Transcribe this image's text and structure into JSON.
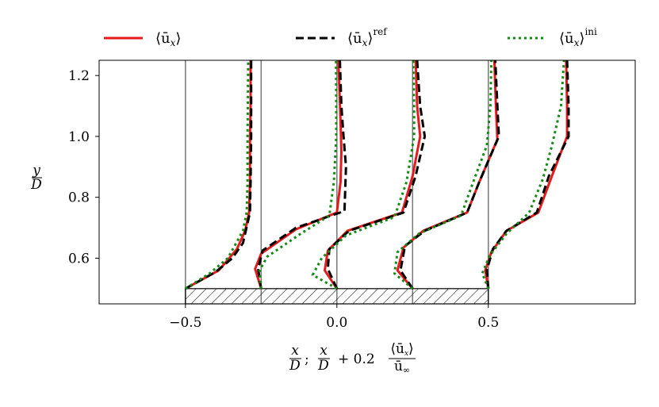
{
  "chart_data": {
    "type": "line",
    "title": "",
    "xlabel": {
      "part1_num": "x",
      "part1_den": "D",
      "separator": ";",
      "part2_num": "x",
      "part2_den": "D",
      "plus": "+ 0.2",
      "frac_num": "⟨ū",
      "frac_num_sub": "x",
      "frac_num_close": "⟩",
      "frac_den": "ū",
      "frac_den_sub": "∞"
    },
    "ylabel": {
      "num": "y",
      "den": "D"
    },
    "xlim": [
      -0.785,
      0.985
    ],
    "ylim": [
      0.45,
      1.25
    ],
    "xticks": [
      -0.5,
      0.0,
      0.5
    ],
    "xtick_labels": [
      "−0.5",
      "0.0",
      "0.5"
    ],
    "yticks": [
      0.6,
      0.8,
      1.0,
      1.2
    ],
    "ytick_labels": [
      "0.6",
      "0.8",
      "1.0",
      "1.2"
    ],
    "vlines": [
      -0.5,
      -0.25,
      0.0,
      0.25,
      0.5
    ],
    "body": {
      "x": [
        -0.5,
        0.5
      ],
      "y": [
        0.45,
        0.5
      ],
      "hatch": true
    },
    "legend": {
      "placement": "top",
      "entries": [
        {
          "base": "⟨ū",
          "sub": "x",
          "close": "⟩",
          "sup": "",
          "color": "#e41a1c",
          "style": "solid"
        },
        {
          "base": "⟨ū",
          "sub": "x",
          "close": "⟩",
          "sup": "ref",
          "color": "#000000",
          "style": "dashed"
        },
        {
          "base": "⟨ū",
          "sub": "x",
          "close": "⟩",
          "sup": "ini",
          "color": "#138a13",
          "style": "dotted"
        }
      ]
    },
    "profiles": [
      {
        "station": -0.5,
        "series": [
          {
            "name": "mean",
            "color": "#e41a1c",
            "style": "solid",
            "points": [
              [
                -0.5,
                0.5
              ],
              [
                -0.39,
                0.56
              ],
              [
                -0.33,
                0.63
              ],
              [
                -0.303,
                0.69
              ],
              [
                -0.29,
                0.75
              ],
              [
                -0.287,
                0.85
              ],
              [
                -0.287,
                1.0
              ],
              [
                -0.285,
                1.1
              ],
              [
                -0.285,
                1.25
              ]
            ]
          },
          {
            "name": "ref",
            "color": "#000000",
            "style": "dashed",
            "points": [
              [
                -0.5,
                0.5
              ],
              [
                -0.4,
                0.555
              ],
              [
                -0.345,
                0.6
              ],
              [
                -0.31,
                0.65
              ],
              [
                -0.287,
                0.75
              ],
              [
                -0.285,
                0.85
              ],
              [
                -0.283,
                1.0
              ],
              [
                -0.283,
                1.1
              ],
              [
                -0.283,
                1.25
              ]
            ]
          },
          {
            "name": "ini",
            "color": "#138a13",
            "style": "dotted",
            "points": [
              [
                -0.5,
                0.5
              ],
              [
                -0.42,
                0.55
              ],
              [
                -0.36,
                0.6
              ],
              [
                -0.31,
                0.69
              ],
              [
                -0.298,
                0.75
              ],
              [
                -0.295,
                0.85
              ],
              [
                -0.295,
                1.0
              ],
              [
                -0.294,
                1.1
              ],
              [
                -0.293,
                1.25
              ]
            ]
          }
        ]
      },
      {
        "station": -0.25,
        "series": [
          {
            "name": "mean",
            "color": "#e41a1c",
            "style": "solid",
            "points": [
              [
                -0.25,
                0.5
              ],
              [
                -0.27,
                0.565
              ],
              [
                -0.25,
                0.615
              ],
              [
                -0.135,
                0.695
              ],
              [
                0.0,
                0.75
              ],
              [
                0.012,
                0.85
              ],
              [
                0.015,
                0.95
              ],
              [
                0.012,
                1.05
              ],
              [
                0.005,
                1.25
              ]
            ]
          },
          {
            "name": "ref",
            "color": "#000000",
            "style": "dashed",
            "points": [
              [
                -0.25,
                0.5
              ],
              [
                -0.26,
                0.565
              ],
              [
                -0.245,
                0.625
              ],
              [
                -0.135,
                0.7
              ],
              [
                0.025,
                0.755
              ],
              [
                0.03,
                0.9
              ],
              [
                0.022,
                1.0
              ],
              [
                0.015,
                1.1
              ],
              [
                0.01,
                1.25
              ]
            ]
          },
          {
            "name": "ini",
            "color": "#138a13",
            "style": "dotted",
            "points": [
              [
                -0.25,
                0.5
              ],
              [
                -0.255,
                0.56
              ],
              [
                -0.23,
                0.605
              ],
              [
                -0.12,
                0.68
              ],
              [
                -0.025,
                0.74
              ],
              [
                -0.01,
                0.85
              ],
              [
                -0.002,
                1.0
              ],
              [
                -0.002,
                1.1
              ],
              [
                -0.003,
                1.25
              ]
            ]
          }
        ]
      },
      {
        "station": 0.0,
        "series": [
          {
            "name": "mean",
            "color": "#e41a1c",
            "style": "solid",
            "points": [
              [
                0.0,
                0.5
              ],
              [
                -0.04,
                0.56
              ],
              [
                -0.03,
                0.625
              ],
              [
                0.035,
                0.69
              ],
              [
                0.215,
                0.75
              ],
              [
                0.25,
                0.87
              ],
              [
                0.275,
                1.0
              ],
              [
                0.265,
                1.1
              ],
              [
                0.26,
                1.25
              ]
            ]
          },
          {
            "name": "ref",
            "color": "#000000",
            "style": "dashed",
            "points": [
              [
                0.0,
                0.5
              ],
              [
                -0.03,
                0.565
              ],
              [
                -0.025,
                0.63
              ],
              [
                0.04,
                0.69
              ],
              [
                0.22,
                0.75
              ],
              [
                0.26,
                0.87
              ],
              [
                0.29,
                1.0
              ],
              [
                0.275,
                1.1
              ],
              [
                0.265,
                1.25
              ]
            ]
          },
          {
            "name": "ini",
            "color": "#138a13",
            "style": "dotted",
            "points": [
              [
                0.0,
                0.5
              ],
              [
                -0.08,
                0.545
              ],
              [
                -0.05,
                0.6
              ],
              [
                0.03,
                0.675
              ],
              [
                0.19,
                0.735
              ],
              [
                0.23,
                0.85
              ],
              [
                0.255,
                1.0
              ],
              [
                0.255,
                1.1
              ],
              [
                0.252,
                1.25
              ]
            ]
          }
        ]
      },
      {
        "station": 0.25,
        "series": [
          {
            "name": "mean",
            "color": "#e41a1c",
            "style": "solid",
            "points": [
              [
                0.25,
                0.5
              ],
              [
                0.2,
                0.56
              ],
              [
                0.22,
                0.635
              ],
              [
                0.285,
                0.69
              ],
              [
                0.43,
                0.75
              ],
              [
                0.47,
                0.85
              ],
              [
                0.53,
                0.99
              ],
              [
                0.525,
                1.1
              ],
              [
                0.52,
                1.25
              ]
            ]
          },
          {
            "name": "ref",
            "color": "#000000",
            "style": "dashed",
            "points": [
              [
                0.25,
                0.5
              ],
              [
                0.21,
                0.56
              ],
              [
                0.225,
                0.64
              ],
              [
                0.29,
                0.69
              ],
              [
                0.43,
                0.75
              ],
              [
                0.47,
                0.85
              ],
              [
                0.535,
                1.0
              ],
              [
                0.53,
                1.1
              ],
              [
                0.523,
                1.25
              ]
            ]
          },
          {
            "name": "ini",
            "color": "#138a13",
            "style": "dotted",
            "points": [
              [
                0.25,
                0.5
              ],
              [
                0.19,
                0.55
              ],
              [
                0.2,
                0.62
              ],
              [
                0.27,
                0.68
              ],
              [
                0.41,
                0.74
              ],
              [
                0.45,
                0.85
              ],
              [
                0.495,
                0.97
              ],
              [
                0.507,
                1.1
              ],
              [
                0.51,
                1.25
              ]
            ]
          }
        ]
      },
      {
        "station": 0.5,
        "series": [
          {
            "name": "mean",
            "color": "#e41a1c",
            "style": "solid",
            "points": [
              [
                0.5,
                0.5
              ],
              [
                0.49,
                0.56
              ],
              [
                0.51,
                0.62
              ],
              [
                0.56,
                0.69
              ],
              [
                0.665,
                0.75
              ],
              [
                0.71,
                0.87
              ],
              [
                0.76,
                1.0
              ],
              [
                0.76,
                1.1
              ],
              [
                0.757,
                1.25
              ]
            ]
          },
          {
            "name": "ref",
            "color": "#000000",
            "style": "dashed",
            "points": [
              [
                0.5,
                0.5
              ],
              [
                0.495,
                0.56
              ],
              [
                0.515,
                0.63
              ],
              [
                0.56,
                0.69
              ],
              [
                0.66,
                0.75
              ],
              [
                0.7,
                0.87
              ],
              [
                0.765,
                1.0
              ],
              [
                0.765,
                1.1
              ],
              [
                0.76,
                1.25
              ]
            ]
          },
          {
            "name": "ini",
            "color": "#138a13",
            "style": "dotted",
            "points": [
              [
                0.5,
                0.5
              ],
              [
                0.48,
                0.55
              ],
              [
                0.505,
                0.61
              ],
              [
                0.56,
                0.68
              ],
              [
                0.635,
                0.75
              ],
              [
                0.68,
                0.86
              ],
              [
                0.71,
                0.97
              ],
              [
                0.74,
                1.1
              ],
              [
                0.75,
                1.25
              ]
            ]
          }
        ]
      }
    ]
  }
}
